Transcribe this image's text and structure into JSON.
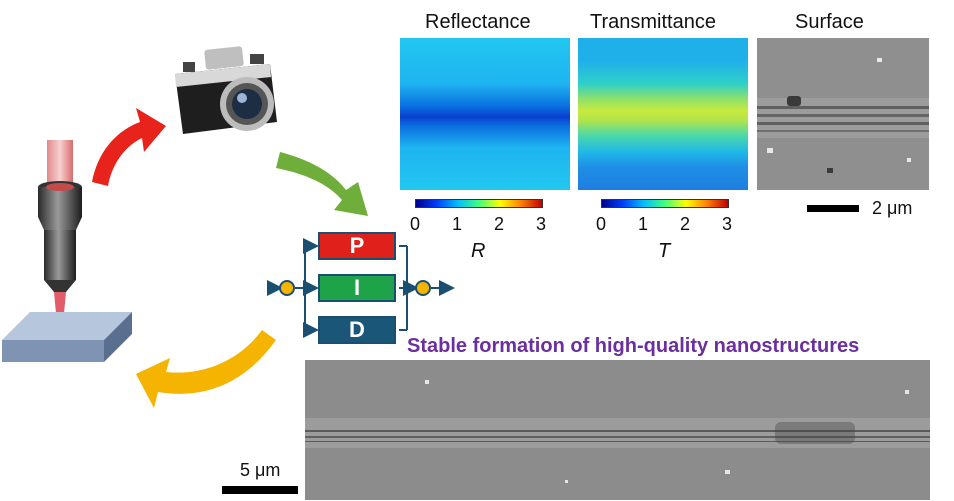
{
  "panels": {
    "reflectance": {
      "title": "Reflectance",
      "colorbar_ticks": [
        "0",
        "1",
        "2",
        "3"
      ],
      "variable": "R"
    },
    "transmittance": {
      "title": "Transmittance",
      "colorbar_ticks": [
        "0",
        "1",
        "2",
        "3"
      ],
      "variable": "T"
    },
    "surface": {
      "title": "Surface",
      "scalebar_label": "2 μm"
    }
  },
  "controller": {
    "p_label": "P",
    "i_label": "I",
    "d_label": "D"
  },
  "headline": {
    "text": "Stable formation of high-quality nanostructures"
  },
  "bottom_sem": {
    "scalebar_label": "5 μm"
  },
  "colors": {
    "p_box": "#e0201b",
    "i_box": "#1fa34a",
    "d_box": "#1a5678",
    "headline": "#6b2fa0",
    "arrow_red": "#e8231c",
    "arrow_green": "#6fae3a",
    "arrow_yellow": "#f4b400"
  }
}
